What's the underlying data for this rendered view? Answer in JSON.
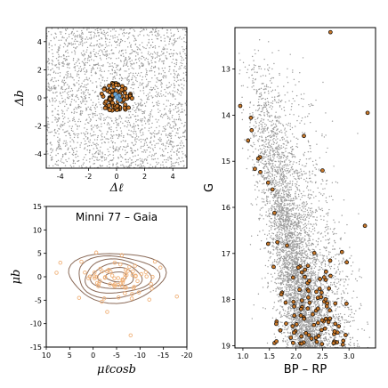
{
  "chart_data": [
    {
      "panel": "sky",
      "type": "scatter",
      "xlabel": "Δℓ",
      "ylabel": "Δb",
      "xlim": [
        -5,
        5
      ],
      "ylim": [
        -5,
        5
      ],
      "xticks": [
        -4,
        -2,
        0,
        2,
        4
      ],
      "yticks": [
        -4,
        -2,
        0,
        2,
        4
      ],
      "series": [
        {
          "role": "field stars",
          "color": "#9a9a9a",
          "distribution": "uniform over panel",
          "approx_count": 2400
        },
        {
          "role": "cluster members",
          "color": "#c8782a",
          "center": [
            0,
            0
          ],
          "radius": 1.1,
          "approx_count": 80
        },
        {
          "role": "cluster core",
          "color": "#6aa6d6",
          "center": [
            0,
            0
          ],
          "radius": 0.35,
          "approx_count": 6
        }
      ]
    },
    {
      "panel": "proper-motion",
      "type": "scatter",
      "title": "Minni 77  –  Gaia",
      "xlabel": "μℓcosb",
      "ylabel": "μb",
      "xlim": [
        10,
        -20
      ],
      "ylim": [
        -15,
        15
      ],
      "xticks": [
        10,
        5,
        0,
        -5,
        -10,
        -15,
        -20
      ],
      "yticks": [
        -15,
        -10,
        -5,
        0,
        5,
        10,
        15
      ],
      "series": [
        {
          "role": "members",
          "color": "#f0b27a",
          "approx_count": 70,
          "center": [
            -5,
            0
          ],
          "spread": [
            4,
            2
          ]
        },
        {
          "role": "density contours",
          "color": "#8a6a58",
          "center": [
            -5,
            0
          ],
          "levels": 6
        }
      ]
    },
    {
      "panel": "cmd",
      "type": "scatter",
      "xlabel": "BP – RP",
      "ylabel": "G",
      "xlim": [
        0.85,
        3.5
      ],
      "ylim": [
        19.05,
        12.1
      ],
      "y_inverted": true,
      "xticks": [
        "1.0",
        "1.5",
        "2.0",
        "2.5",
        "3.0"
      ],
      "yticks": [
        "13",
        "14",
        "15",
        "16",
        "17",
        "18",
        "19"
      ],
      "series": [
        {
          "role": "field stars",
          "color": "#9a9a9a",
          "approx_count": 5200
        },
        {
          "role": "cluster members",
          "color": "#c8782a",
          "approx_count": 110
        }
      ]
    }
  ]
}
